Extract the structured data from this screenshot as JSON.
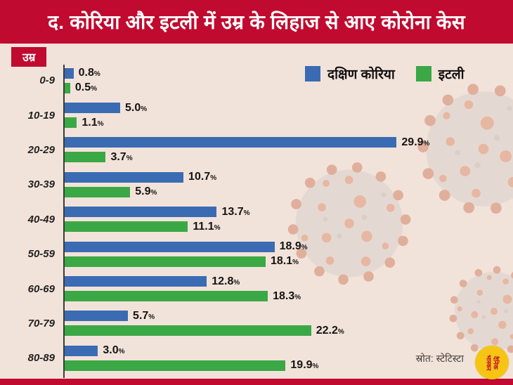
{
  "title": "द. कोरिया और इटली में उम्र के लिहाज से आए कोरोना केस",
  "axis_label": "उम्र",
  "legend": [
    {
      "label": "दक्षिण कोरिया",
      "color": "#3b6bb3"
    },
    {
      "label": "इटली",
      "color": "#3aa845"
    }
  ],
  "source": "स्रोत: स्टेटिस्टा",
  "logo": {
    "line1": "दैनिक",
    "line2": "भास्कर"
  },
  "colors": {
    "banner_red": "#c00a2f",
    "background": "#f2e3da",
    "korea_blue": "#3b6bb3",
    "italy_green": "#3aa845"
  },
  "chart_data": {
    "type": "bar",
    "orientation": "horizontal",
    "title": "द. कोरिया और इटली में उम्र के लिहाज से आए कोरोना केस",
    "xlabel": "",
    "ylabel": "उम्र",
    "xlim": [
      0,
      30
    ],
    "value_suffix": "%",
    "categories": [
      "0-9",
      "10-19",
      "20-29",
      "30-39",
      "40-49",
      "50-59",
      "60-69",
      "70-79",
      "80-89"
    ],
    "series": [
      {
        "name": "दक्षिण कोरिया",
        "color": "#3b6bb3",
        "values": [
          0.8,
          5.0,
          29.9,
          10.7,
          13.7,
          18.9,
          12.8,
          5.7,
          3.0
        ]
      },
      {
        "name": "इटली",
        "color": "#3aa845",
        "values": [
          0.5,
          1.1,
          3.7,
          5.9,
          11.1,
          18.1,
          18.3,
          22.2,
          19.9
        ]
      }
    ],
    "legend_position": "top-right",
    "grid": false
  }
}
